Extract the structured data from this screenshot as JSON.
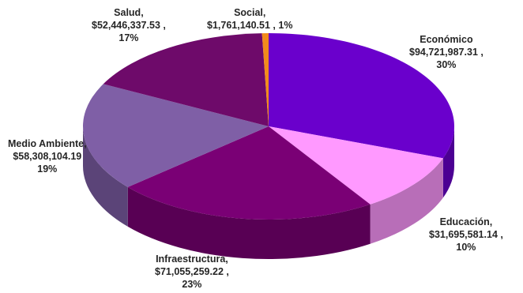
{
  "chart_data": {
    "type": "pie",
    "style": "3d",
    "title": "",
    "slices": [
      {
        "name": "Económico",
        "amount": "$94,721,987.31",
        "value": 94721987.31,
        "percent": "30%",
        "color": "#6a00cc"
      },
      {
        "name": "Educación",
        "amount": "$31,695,581.14",
        "value": 31695581.14,
        "percent": "10%",
        "color": "#ff99ff"
      },
      {
        "name": "Infraestructura",
        "amount": "$71,055,259.22",
        "value": 71055259.22,
        "percent": "23%",
        "color": "#7a0075"
      },
      {
        "name": "Medio Ambiente",
        "amount": "$58,308,104.19",
        "value": 58308104.19,
        "percent": "19%",
        "color": "#7f5fa6"
      },
      {
        "name": "Salud",
        "amount": "$52,446,337.53",
        "value": 52446337.53,
        "percent": "17%",
        "color": "#6e0a6a"
      },
      {
        "name": "Social",
        "amount": "$1,761,140.51",
        "value": 1761140.51,
        "percent": "1%",
        "color": "#f28a1c"
      }
    ]
  }
}
